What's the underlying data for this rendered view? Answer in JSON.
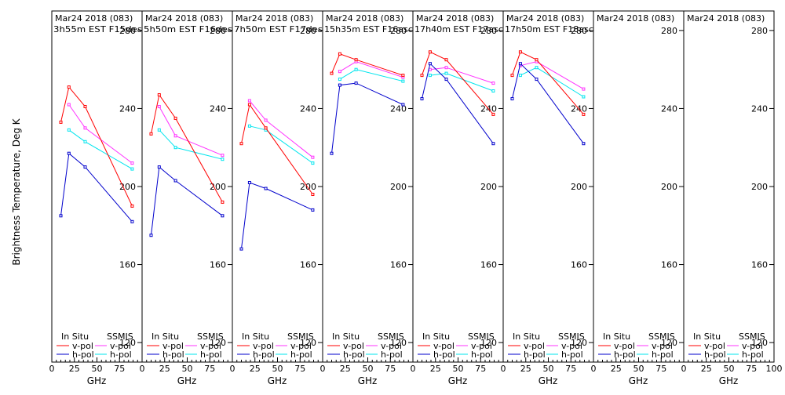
{
  "chart_data": {
    "type": "line",
    "ylabel": "Brightness Temperature, Deg K",
    "xlabel": "GHz",
    "xlim": [
      0,
      100
    ],
    "ylim": [
      110,
      290
    ],
    "x_ticks": [
      "0",
      "25",
      "50",
      "75",
      "100"
    ],
    "y_ticks": [
      120,
      160,
      200,
      240,
      280
    ],
    "legend": {
      "in_situ_header": "In Situ",
      "ssmis_header": "SSMIS",
      "vpol": "v-pol",
      "hpol": "h-pol"
    },
    "colors": {
      "insitu_v": "#ff0000",
      "insitu_h": "#0000cc",
      "ssmis_v": "#ff33ff",
      "ssmis_h": "#00e5ee"
    },
    "panels": [
      {
        "date": "Mar24 2018 (083)",
        "pass": "3h55m EST F15des",
        "insitu_v": {
          "x": [
            10,
            19,
            37,
            89
          ],
          "y": [
            233,
            251,
            241,
            190
          ]
        },
        "insitu_h": {
          "x": [
            10,
            19,
            37,
            89
          ],
          "y": [
            185,
            217,
            210,
            182
          ]
        },
        "ssmis_v": {
          "x": [
            19,
            37,
            89
          ],
          "y": [
            242,
            230,
            212
          ]
        },
        "ssmis_h": {
          "x": [
            19,
            37,
            89
          ],
          "y": [
            229,
            223,
            209
          ]
        }
      },
      {
        "date": "Mar24 2018 (083)",
        "pass": "5h50m EST F16des",
        "insitu_v": {
          "x": [
            10,
            19,
            37,
            89
          ],
          "y": [
            227,
            247,
            235,
            192
          ]
        },
        "insitu_h": {
          "x": [
            10,
            19,
            37,
            89
          ],
          "y": [
            175,
            210,
            203,
            185
          ]
        },
        "ssmis_v": {
          "x": [
            19,
            37,
            89
          ],
          "y": [
            241,
            226,
            216
          ]
        },
        "ssmis_h": {
          "x": [
            19,
            37,
            89
          ],
          "y": [
            229,
            220,
            214
          ]
        }
      },
      {
        "date": "Mar24 2018 (083)",
        "pass": "7h50m EST F17des",
        "insitu_v": {
          "x": [
            10,
            19,
            37,
            89
          ],
          "y": [
            222,
            242,
            230,
            196
          ]
        },
        "insitu_h": {
          "x": [
            10,
            19,
            37,
            89
          ],
          "y": [
            168,
            202,
            199,
            188
          ]
        },
        "ssmis_v": {
          "x": [
            19,
            37,
            89
          ],
          "y": [
            244,
            234,
            215
          ]
        },
        "ssmis_h": {
          "x": [
            19,
            37,
            89
          ],
          "y": [
            231,
            229,
            212
          ]
        }
      },
      {
        "date": "Mar24 2018 (083)",
        "pass": "15h35m EST F16asc",
        "insitu_v": {
          "x": [
            10,
            19,
            37,
            89
          ],
          "y": [
            258,
            268,
            265,
            257
          ]
        },
        "insitu_h": {
          "x": [
            10,
            19,
            37,
            89
          ],
          "y": [
            217,
            252,
            253,
            242
          ]
        },
        "ssmis_v": {
          "x": [
            19,
            37,
            89
          ],
          "y": [
            259,
            264,
            256
          ]
        },
        "ssmis_h": {
          "x": [
            19,
            37,
            89
          ],
          "y": [
            255,
            260,
            254
          ]
        }
      },
      {
        "date": "Mar24 2018 (083)",
        "pass": "17h40m EST F17asc",
        "insitu_v": {
          "x": [
            10,
            19,
            37,
            89
          ],
          "y": [
            257,
            269,
            265,
            237
          ]
        },
        "insitu_h": {
          "x": [
            10,
            19,
            37,
            89
          ],
          "y": [
            245,
            263,
            255,
            222
          ]
        },
        "ssmis_v": {
          "x": [
            19,
            37,
            89
          ],
          "y": [
            260,
            261,
            253
          ]
        },
        "ssmis_h": {
          "x": [
            19,
            37,
            89
          ],
          "y": [
            257,
            258,
            249
          ]
        }
      },
      {
        "date": "Mar24 2018 (083)",
        "pass": "17h50m EST F18asc",
        "insitu_v": {
          "x": [
            10,
            19,
            37,
            89
          ],
          "y": [
            257,
            269,
            265,
            237
          ]
        },
        "insitu_h": {
          "x": [
            10,
            19,
            37,
            89
          ],
          "y": [
            245,
            263,
            255,
            222
          ]
        },
        "ssmis_v": {
          "x": [
            19,
            37,
            89
          ],
          "y": [
            262,
            264,
            250
          ]
        },
        "ssmis_h": {
          "x": [
            19,
            37,
            89
          ],
          "y": [
            257,
            261,
            246
          ]
        }
      },
      {
        "date": "Mar24 2018 (083)",
        "pass": "",
        "insitu_v": {
          "x": [],
          "y": []
        },
        "insitu_h": {
          "x": [],
          "y": []
        },
        "ssmis_v": {
          "x": [],
          "y": []
        },
        "ssmis_h": {
          "x": [],
          "y": []
        }
      },
      {
        "date": "Mar24 2018 (083)",
        "pass": "",
        "insitu_v": {
          "x": [],
          "y": []
        },
        "insitu_h": {
          "x": [],
          "y": []
        },
        "ssmis_v": {
          "x": [],
          "y": []
        },
        "ssmis_h": {
          "x": [],
          "y": []
        }
      }
    ]
  }
}
